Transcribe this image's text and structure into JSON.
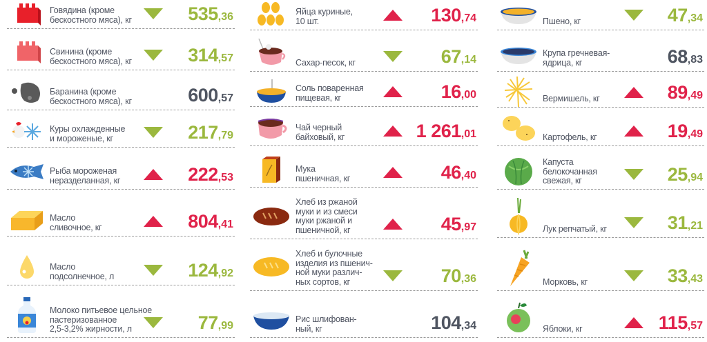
{
  "colors": {
    "down": "#9bb83e",
    "up": "#e0224a",
    "neutral": "#4f5561",
    "label": "#505562"
  },
  "columns": [
    {
      "items": [
        {
          "lines": [
            "Говядина (кроме",
            "бескостного мяса), кг"
          ],
          "trend": "down",
          "int": "535",
          "dec": ",36",
          "icon": "beef-icon"
        },
        {
          "lines": [
            "Свинина (кроме",
            "бескостного мяса), кг"
          ],
          "trend": "down",
          "int": "314",
          "dec": ",57",
          "icon": "pork-icon"
        },
        {
          "lines": [
            "Баранина (кроме",
            "бескостного мяса), кг"
          ],
          "trend": "none",
          "int": "600",
          "dec": ",57",
          "icon": "lamb-icon"
        },
        {
          "lines": [
            "Куры охлажденные",
            "и мороженые, кг"
          ],
          "trend": "down",
          "int": "217",
          "dec": ",79",
          "icon": "chicken-icon"
        },
        {
          "lines": [
            "Рыба мороженая",
            "неразделанная, кг"
          ],
          "trend": "up",
          "int": "222",
          "dec": ",53",
          "icon": "fish-icon"
        },
        {
          "lines": [
            "Масло",
            "сливочное, кг"
          ],
          "trend": "up",
          "int": "804",
          "dec": ",41",
          "icon": "butter-icon"
        },
        {
          "lines": [
            "Масло",
            "подсолнечное, л"
          ],
          "trend": "down",
          "int": "124",
          "dec": ",92",
          "icon": "oil-drop-icon"
        },
        {
          "lines": [
            "Молоко питьевое цельное",
            "пастеризованное",
            "2,5-3,2% жирности, л"
          ],
          "trend": "down",
          "int": "77",
          "dec": ",99",
          "icon": "milk-bottle-icon"
        }
      ]
    },
    {
      "items": [
        {
          "lines": [
            "Яйца куриные,",
            "10 шт."
          ],
          "trend": "up",
          "int": "130",
          "dec": ",74",
          "icon": "eggs-icon"
        },
        {
          "lines": [
            "Сахар-песок, кг"
          ],
          "trend": "down",
          "int": "67",
          "dec": ",14",
          "icon": "sugar-icon"
        },
        {
          "lines": [
            "Соль поваренная",
            "пищевая, кг"
          ],
          "trend": "up",
          "int": "16",
          "dec": ",00",
          "icon": "salt-icon"
        },
        {
          "lines": [
            "Чай черный",
            "байховый, кг"
          ],
          "trend": "up",
          "int": "1 261",
          "dec": ",01",
          "icon": "tea-cup-icon"
        },
        {
          "lines": [
            "Мука",
            "пшеничная, кг"
          ],
          "trend": "up",
          "int": "46",
          "dec": ",40",
          "icon": "flour-icon"
        },
        {
          "lines": [
            "Хлеб из ржаной",
            "муки и из смеси",
            "муки ржаной и",
            "пшеничной, кг"
          ],
          "trend": "up",
          "int": "45",
          "dec": ",97",
          "icon": "rye-bread-icon"
        },
        {
          "lines": [
            "Хлеб и булочные",
            "изделия из пшенич-",
            "ной муки различ-",
            "ных сортов, кг"
          ],
          "trend": "down",
          "int": "70",
          "dec": ",36",
          "icon": "wheat-bread-icon"
        },
        {
          "lines": [
            "Рис шлифован-",
            "ный, кг"
          ],
          "trend": "none",
          "int": "104",
          "dec": ",34",
          "icon": "rice-bowl-icon"
        }
      ]
    },
    {
      "items": [
        {
          "lines": [
            "Пшено, кг"
          ],
          "trend": "down",
          "int": "47",
          "dec": ",34",
          "icon": "millet-bowl-icon"
        },
        {
          "lines": [
            "Крупа гречневая-",
            "ядрица, кг"
          ],
          "trend": "none",
          "int": "68",
          "dec": ",83",
          "icon": "buckwheat-bowl-icon"
        },
        {
          "lines": [
            "Вермишель, кг"
          ],
          "trend": "up",
          "int": "89",
          "dec": ",49",
          "icon": "vermicelli-icon"
        },
        {
          "lines": [
            "Картофель, кг"
          ],
          "trend": "up",
          "int": "19",
          "dec": ",49",
          "icon": "potato-icon"
        },
        {
          "lines": [
            "Капуста",
            "белокочанная",
            "свежая, кг"
          ],
          "trend": "down",
          "int": "25",
          "dec": ",94",
          "icon": "cabbage-icon"
        },
        {
          "lines": [
            "Лук репчатый, кг"
          ],
          "trend": "down",
          "int": "31",
          "dec": ",21",
          "icon": "onion-icon"
        },
        {
          "lines": [
            "Морковь, кг"
          ],
          "trend": "down",
          "int": "33",
          "dec": ",43",
          "icon": "carrot-icon"
        },
        {
          "lines": [
            "Яблоки, кг"
          ],
          "trend": "up",
          "int": "115",
          "dec": ",57",
          "icon": "apple-icon"
        }
      ]
    }
  ]
}
